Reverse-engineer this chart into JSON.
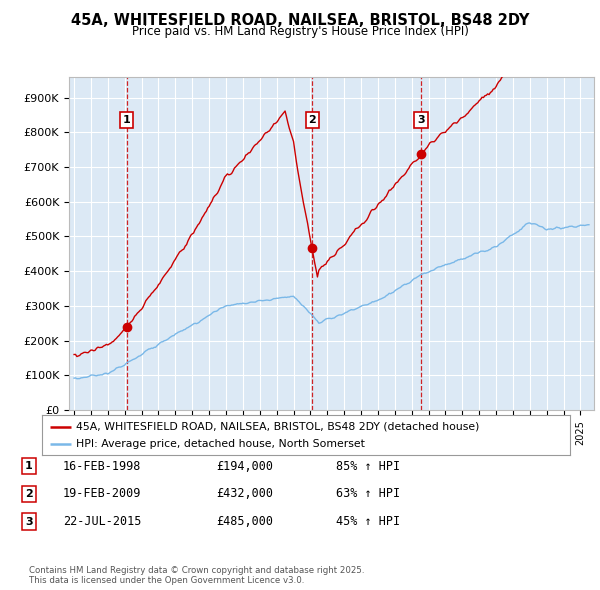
{
  "title": "45A, WHITESFIELD ROAD, NAILSEA, BRISTOL, BS48 2DY",
  "subtitle": "Price paid vs. HM Land Registry's House Price Index (HPI)",
  "plot_bg_color": "#dce9f5",
  "red_line_color": "#cc0000",
  "blue_line_color": "#7ab8e8",
  "red_line_label": "45A, WHITESFIELD ROAD, NAILSEA, BRISTOL, BS48 2DY (detached house)",
  "blue_line_label": "HPI: Average price, detached house, North Somerset",
  "footer": "Contains HM Land Registry data © Crown copyright and database right 2025.\nThis data is licensed under the Open Government Licence v3.0.",
  "transactions": [
    {
      "num": 1,
      "date": "16-FEB-1998",
      "price": "£194,000",
      "hpi": "85% ↑ HPI",
      "year": 1998.12
    },
    {
      "num": 2,
      "date": "19-FEB-2009",
      "price": "£432,000",
      "hpi": "63% ↑ HPI",
      "year": 2009.12
    },
    {
      "num": 3,
      "date": "22-JUL-2015",
      "price": "£485,000",
      "hpi": "45% ↑ HPI",
      "year": 2015.55
    }
  ],
  "transaction_prices": [
    194000,
    432000,
    485000
  ],
  "ylim": [
    0,
    960000
  ],
  "xlim_start": 1994.7,
  "xlim_end": 2025.8,
  "yticks": [
    0,
    100000,
    200000,
    300000,
    400000,
    500000,
    600000,
    700000,
    800000,
    900000
  ],
  "ytick_labels": [
    "£0",
    "£100K",
    "£200K",
    "£300K",
    "£400K",
    "£500K",
    "£600K",
    "£700K",
    "£800K",
    "£900K"
  ],
  "grid_color": "#ffffff",
  "spine_color": "#bbbbbb"
}
